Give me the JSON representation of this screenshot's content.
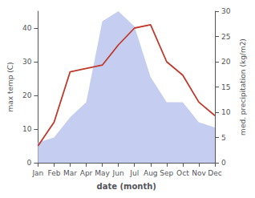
{
  "chart_data": {
    "type": "line",
    "xlabel": "date (month)",
    "ylabel": "max temp (C)",
    "y2label": "med. precipitation (kg/m2)",
    "categories": [
      "Jan",
      "Feb",
      "Mar",
      "Apr",
      "May",
      "Jun",
      "Jul",
      "Aug",
      "Sep",
      "Oct",
      "Nov",
      "Dec"
    ],
    "series": [
      {
        "type": "area",
        "axis": "y2",
        "color": "#c5cef0",
        "values": [
          4,
          5,
          9,
          12,
          28,
          30,
          27,
          17,
          12,
          12,
          8,
          7
        ]
      },
      {
        "type": "line",
        "color": "#c0392b",
        "values": [
          5,
          12,
          27,
          28,
          29,
          35,
          40,
          41,
          30,
          26,
          18,
          14
        ]
      }
    ],
    "ylim": [
      0,
      45
    ],
    "yticks": [
      0,
      10,
      20,
      30,
      40
    ],
    "y2lim": [
      0,
      30
    ],
    "y2ticks": [
      0,
      5,
      10,
      15,
      20,
      25,
      30
    ],
    "grid": false
  }
}
